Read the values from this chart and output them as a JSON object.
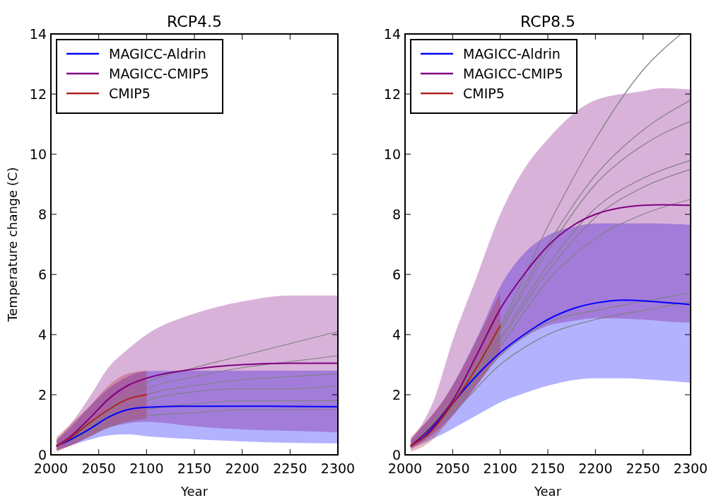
{
  "chart_data": [
    {
      "type": "line",
      "title": "RCP4.5",
      "xlabel": "Year",
      "ylabel": "Temperature change (C)",
      "xlim": [
        2000,
        2300
      ],
      "ylim": [
        0,
        14
      ],
      "xticks": [
        2000,
        2050,
        2100,
        2150,
        2200,
        2250,
        2300
      ],
      "yticks": [
        0,
        2,
        4,
        6,
        8,
        10,
        12,
        14
      ],
      "legend": "top left",
      "grid": false,
      "series": [
        {
          "name": "MAGICC-Aldrin",
          "color": "#0000ff",
          "x": [
            2006,
            2020,
            2040,
            2060,
            2080,
            2100,
            2150,
            2200,
            2250,
            2300
          ],
          "values": [
            0.3,
            0.5,
            0.85,
            1.25,
            1.5,
            1.58,
            1.62,
            1.62,
            1.61,
            1.6
          ],
          "lower": [
            0.15,
            0.3,
            0.5,
            0.65,
            0.68,
            0.62,
            0.52,
            0.45,
            0.4,
            0.38
          ],
          "upper": [
            0.5,
            0.9,
            1.6,
            2.2,
            2.6,
            2.78,
            2.8,
            2.8,
            2.8,
            2.8
          ]
        },
        {
          "name": "MAGICC-CMIP5",
          "color": "#800080",
          "x": [
            2006,
            2020,
            2040,
            2060,
            2080,
            2100,
            2150,
            2200,
            2250,
            2300
          ],
          "values": [
            0.3,
            0.6,
            1.2,
            1.85,
            2.3,
            2.55,
            2.85,
            3.0,
            3.05,
            3.05
          ],
          "lower": [
            0.15,
            0.3,
            0.6,
            0.9,
            1.05,
            1.1,
            0.95,
            0.85,
            0.8,
            0.75
          ],
          "upper": [
            0.5,
            1.0,
            1.9,
            2.9,
            3.5,
            4.0,
            4.7,
            5.1,
            5.3,
            5.3
          ]
        },
        {
          "name": "CMIP5",
          "color": "#b22222",
          "x": [
            2006,
            2020,
            2040,
            2060,
            2080,
            2100
          ],
          "values": [
            0.3,
            0.55,
            1.05,
            1.5,
            1.85,
            2.0
          ],
          "lower": [
            0.1,
            0.3,
            0.6,
            0.9,
            1.1,
            1.2
          ],
          "upper": [
            0.6,
            1.0,
            1.6,
            2.3,
            2.7,
            2.8
          ]
        },
        {
          "color": "#808080",
          "x": [
            2006,
            2050,
            2100,
            2150,
            2200,
            2250,
            2300
          ],
          "values": [
            0.3,
            1.3,
            2.4,
            2.9,
            3.3,
            3.7,
            4.1
          ]
        },
        {
          "color": "#808080",
          "x": [
            2006,
            2050,
            2100,
            2150,
            2200,
            2250,
            2300
          ],
          "values": [
            0.3,
            1.2,
            2.2,
            2.6,
            2.9,
            3.1,
            3.3
          ]
        },
        {
          "color": "#808080",
          "x": [
            2006,
            2050,
            2100,
            2150,
            2200,
            2250,
            2300
          ],
          "values": [
            0.3,
            1.1,
            2.0,
            2.3,
            2.5,
            2.6,
            2.7
          ]
        },
        {
          "color": "#808080",
          "x": [
            2006,
            2050,
            2100,
            2150,
            2200,
            2250,
            2300
          ],
          "values": [
            0.3,
            1.0,
            1.8,
            2.1,
            2.2,
            2.2,
            2.3
          ]
        },
        {
          "color": "#808080",
          "x": [
            2006,
            2050,
            2100,
            2150,
            2200,
            2250,
            2300
          ],
          "values": [
            0.3,
            0.9,
            1.5,
            1.7,
            1.8,
            1.8,
            1.8
          ]
        },
        {
          "color": "#808080",
          "x": [
            2006,
            2050,
            2100,
            2150,
            2200,
            2250,
            2300
          ],
          "values": [
            0.3,
            0.8,
            1.3,
            1.4,
            1.5,
            1.5,
            1.5
          ]
        }
      ]
    },
    {
      "type": "line",
      "title": "RCP8.5",
      "xlabel": "Year",
      "xlim": [
        2000,
        2300
      ],
      "ylim": [
        0,
        14
      ],
      "xticks": [
        2000,
        2050,
        2100,
        2150,
        2200,
        2250,
        2300
      ],
      "yticks": [
        0,
        2,
        4,
        6,
        8,
        10,
        12,
        14
      ],
      "legend": "top left",
      "grid": false,
      "series": [
        {
          "name": "MAGICC-Aldrin",
          "color": "#0000ff",
          "x": [
            2006,
            2020,
            2040,
            2060,
            2080,
            2100,
            2125,
            2150,
            2180,
            2200,
            2230,
            2260,
            2300
          ],
          "values": [
            0.3,
            0.6,
            1.3,
            2.1,
            2.8,
            3.4,
            4.0,
            4.5,
            4.9,
            5.05,
            5.15,
            5.1,
            5.0
          ],
          "lower": [
            0.2,
            0.4,
            0.7,
            1.05,
            1.4,
            1.75,
            2.05,
            2.3,
            2.5,
            2.55,
            2.55,
            2.5,
            2.4
          ],
          "upper": [
            0.5,
            1.0,
            1.8,
            2.9,
            4.2,
            5.6,
            6.7,
            7.3,
            7.6,
            7.7,
            7.7,
            7.7,
            7.65
          ]
        },
        {
          "name": "MAGICC-CMIP5",
          "color": "#800080",
          "x": [
            2006,
            2030,
            2050,
            2075,
            2100,
            2125,
            2150,
            2175,
            2200,
            2250,
            2270,
            2300
          ],
          "values": [
            0.3,
            1.0,
            1.8,
            3.3,
            4.85,
            6.0,
            6.95,
            7.6,
            8.0,
            8.3,
            8.32,
            8.3
          ],
          "lower": [
            0.2,
            0.7,
            1.3,
            2.3,
            3.3,
            3.9,
            4.3,
            4.45,
            4.55,
            4.5,
            4.45,
            4.4
          ],
          "upper": [
            0.5,
            1.8,
            3.8,
            5.9,
            8.0,
            9.5,
            10.5,
            11.3,
            11.8,
            12.1,
            12.2,
            12.15
          ]
        },
        {
          "name": "CMIP5",
          "color": "#b22222",
          "x": [
            2006,
            2025,
            2050,
            2075,
            2100
          ],
          "values": [
            0.3,
            0.7,
            1.7,
            2.9,
            4.3
          ],
          "lower": [
            0.1,
            0.4,
            1.3,
            2.3,
            3.4
          ],
          "upper": [
            0.6,
            1.2,
            2.3,
            3.8,
            5.4
          ]
        },
        {
          "color": "#808080",
          "x": [
            2006,
            2050,
            2100,
            2150,
            2200,
            2250,
            2290
          ],
          "values": [
            0.3,
            1.9,
            4.3,
            7.6,
            10.5,
            12.8,
            14.0
          ]
        },
        {
          "color": "#808080",
          "x": [
            2006,
            2050,
            2100,
            2150,
            2200,
            2250,
            2300
          ],
          "values": [
            0.3,
            1.8,
            4.2,
            7.0,
            9.3,
            10.8,
            11.8
          ]
        },
        {
          "color": "#808080",
          "x": [
            2006,
            2050,
            2100,
            2150,
            2200,
            2250,
            2300
          ],
          "values": [
            0.3,
            1.8,
            4.1,
            6.8,
            9.0,
            10.3,
            11.1
          ]
        },
        {
          "color": "#808080",
          "x": [
            2006,
            2050,
            2100,
            2150,
            2200,
            2250,
            2300
          ],
          "values": [
            0.3,
            1.7,
            3.9,
            6.3,
            8.2,
            9.2,
            9.8
          ]
        },
        {
          "color": "#808080",
          "x": [
            2006,
            2050,
            2100,
            2150,
            2200,
            2250,
            2300
          ],
          "values": [
            0.3,
            1.7,
            3.8,
            6.1,
            7.9,
            8.9,
            9.5
          ]
        },
        {
          "color": "#808080",
          "x": [
            2006,
            2050,
            2100,
            2150,
            2200,
            2250,
            2300
          ],
          "values": [
            0.3,
            1.6,
            3.6,
            5.8,
            7.2,
            8.0,
            8.5
          ]
        },
        {
          "color": "#808080",
          "x": [
            2006,
            2050,
            2100,
            2150,
            2200,
            2250,
            2300
          ],
          "values": [
            0.3,
            1.5,
            3.3,
            4.4,
            4.8,
            5.1,
            5.4
          ]
        },
        {
          "color": "#808080",
          "x": [
            2006,
            2050,
            2100,
            2150,
            2200,
            2250,
            2300
          ],
          "values": [
            0.3,
            1.4,
            3.0,
            4.0,
            4.5,
            4.8,
            5.1
          ]
        }
      ]
    }
  ]
}
